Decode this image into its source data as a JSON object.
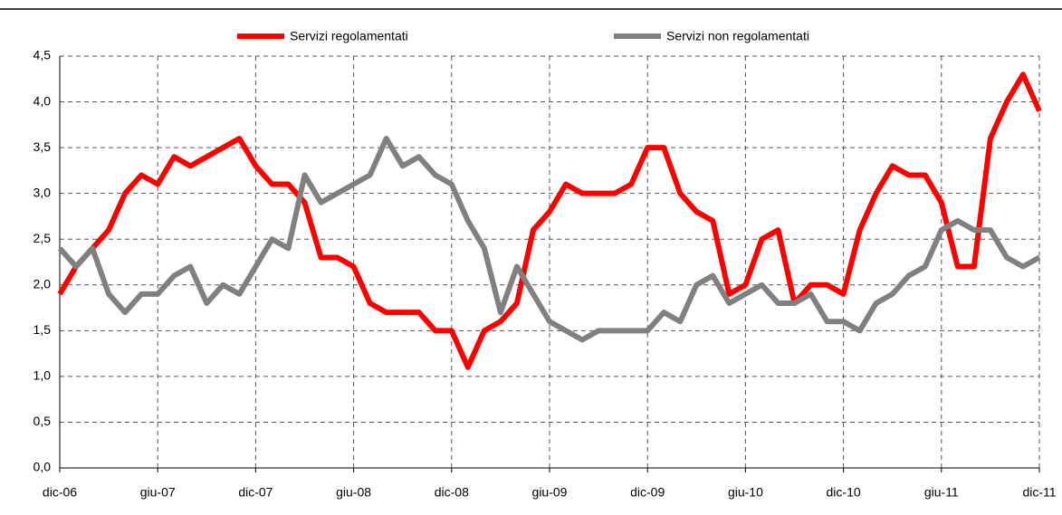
{
  "chart_data": {
    "type": "line",
    "categories": [
      "dic-06",
      null,
      null,
      null,
      null,
      null,
      "giu-07",
      null,
      null,
      null,
      null,
      null,
      "dic-07",
      null,
      null,
      null,
      null,
      null,
      "giu-08",
      null,
      null,
      null,
      null,
      null,
      "dic-08",
      null,
      null,
      null,
      null,
      null,
      "giu-09",
      null,
      null,
      null,
      null,
      null,
      "dic-09",
      null,
      null,
      null,
      null,
      null,
      "giu-10",
      null,
      null,
      null,
      null,
      null,
      "dic-10",
      null,
      null,
      null,
      null,
      null,
      "giu-11",
      null,
      null,
      null,
      null,
      null,
      "dic-11"
    ],
    "series": [
      {
        "name": "Servizi regolamentati",
        "color": "#ff0000",
        "values": [
          1.9,
          2.2,
          2.4,
          2.6,
          3.0,
          3.2,
          3.1,
          3.4,
          3.3,
          3.4,
          3.5,
          3.6,
          3.3,
          3.1,
          3.1,
          2.9,
          2.3,
          2.3,
          2.2,
          1.8,
          1.7,
          1.7,
          1.7,
          1.5,
          1.5,
          1.1,
          1.5,
          1.6,
          1.8,
          2.6,
          2.8,
          3.1,
          3.0,
          3.0,
          3.0,
          3.1,
          3.5,
          3.5,
          3.0,
          2.8,
          2.7,
          1.9,
          2.0,
          2.5,
          2.6,
          1.8,
          2.0,
          2.0,
          1.9,
          2.6,
          3.0,
          3.3,
          3.2,
          3.2,
          2.9,
          2.2,
          2.2,
          3.6,
          4.0,
          4.3,
          3.9
        ]
      },
      {
        "name": "Servizi non regolamentati",
        "color": "#808080",
        "values": [
          2.4,
          2.2,
          2.4,
          1.9,
          1.7,
          1.9,
          1.9,
          2.1,
          2.2,
          1.8,
          2.0,
          1.9,
          2.2,
          2.5,
          2.4,
          3.2,
          2.9,
          3.0,
          3.1,
          3.2,
          3.6,
          3.3,
          3.4,
          3.2,
          3.1,
          2.7,
          2.4,
          1.7,
          2.2,
          1.9,
          1.6,
          1.5,
          1.4,
          1.5,
          1.5,
          1.5,
          1.5,
          1.7,
          1.6,
          2.0,
          2.1,
          1.8,
          1.9,
          2.0,
          1.8,
          1.8,
          1.9,
          1.6,
          1.6,
          1.5,
          1.8,
          1.9,
          2.1,
          2.2,
          2.6,
          2.7,
          2.6,
          2.6,
          2.3,
          2.2,
          2.3
        ]
      }
    ],
    "ylim": [
      0,
      4.5
    ],
    "yticks": [
      {
        "value": 0,
        "label": "0,0"
      },
      {
        "value": 0.5,
        "label": "0,5"
      },
      {
        "value": 1,
        "label": "1,0"
      },
      {
        "value": 1.5,
        "label": "1,5"
      },
      {
        "value": 2,
        "label": "2,0"
      },
      {
        "value": 2.5,
        "label": "2,5"
      },
      {
        "value": 3,
        "label": "3,0"
      },
      {
        "value": 3.5,
        "label": "3,5"
      },
      {
        "value": 4,
        "label": "4,0"
      },
      {
        "value": 4.5,
        "label": "4,5"
      }
    ],
    "grid": true
  }
}
